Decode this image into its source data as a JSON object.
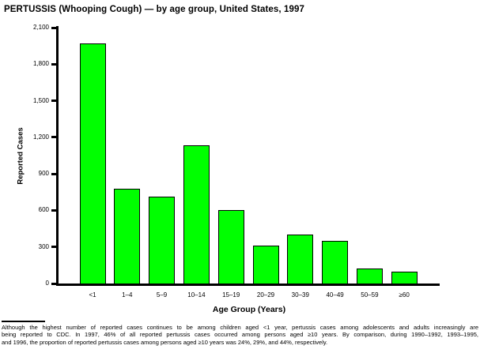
{
  "title": "PERTUSSIS (Whooping Cough) — by age group, United States, 1997",
  "chart_data": {
    "type": "bar",
    "title": "PERTUSSIS (Whooping Cough) — by age group, United States, 1997",
    "categories": [
      "<1",
      "1–4",
      "5–9",
      "10–14",
      "15–19",
      "20–29",
      "30–39",
      "40–49",
      "50–59",
      "≥60"
    ],
    "values": [
      1970,
      780,
      710,
      1135,
      605,
      310,
      400,
      350,
      125,
      100
    ],
    "xlabel": "Age Group (Years)",
    "ylabel": "Reported Cases",
    "ylim": [
      0,
      2100
    ],
    "yticks": [
      0,
      300,
      600,
      900,
      1200,
      1500,
      1800,
      2100
    ],
    "ytick_labels": [
      "0",
      "300",
      "600",
      "900",
      "1,200",
      "1,500",
      "1,800",
      "2,100"
    ],
    "bar_color": "#00FF00",
    "bar_border_color": "#000000",
    "grid": false,
    "legend": false
  },
  "footnote": {
    "lines": [
      "Although the highest number of reported cases continues to be among children aged <1 year, pertussis cases among adolescents and adults increasingly are",
      "being reported to CDC. In 1997, 46% of all reported pertussis cases occurred among persons aged ≥10 years. By comparison, during 1990–1992, 1993–1995,",
      "and 1996, the proportion of reported pertussis cases among persons aged ≥10 years was 24%, 29%, and 44%, respectively."
    ]
  }
}
